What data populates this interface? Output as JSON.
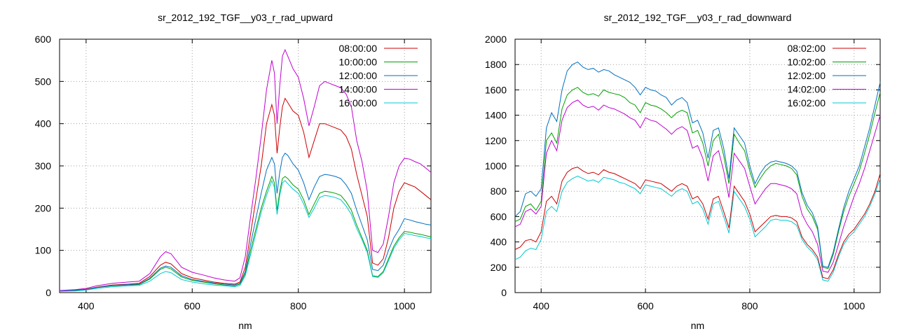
{
  "chart_data": [
    {
      "type": "line",
      "title": "sr_2012_192_TGF__y03_r_rad_upward",
      "xlabel": "nm",
      "ylabel": "",
      "xlim": [
        350,
        1050
      ],
      "ylim": [
        0,
        600
      ],
      "xticks": [
        400,
        600,
        800,
        1000
      ],
      "yticks": [
        0,
        100,
        200,
        300,
        400,
        500,
        600
      ],
      "grid": true,
      "legend_position": "top-right",
      "x": [
        350,
        380,
        400,
        420,
        450,
        480,
        500,
        520,
        540,
        550,
        560,
        580,
        600,
        620,
        640,
        660,
        680,
        690,
        700,
        710,
        720,
        730,
        740,
        750,
        755,
        760,
        765,
        770,
        775,
        780,
        790,
        800,
        810,
        820,
        830,
        840,
        850,
        860,
        870,
        880,
        890,
        900,
        910,
        920,
        930,
        940,
        950,
        960,
        970,
        980,
        990,
        1000,
        1010,
        1020,
        1030,
        1040,
        1050
      ],
      "series": [
        {
          "name": "08:00:00",
          "color": "#cc0000",
          "values": [
            4,
            6,
            8,
            13,
            18,
            20,
            22,
            38,
            65,
            72,
            68,
            45,
            35,
            30,
            25,
            22,
            20,
            25,
            60,
            140,
            220,
            300,
            400,
            445,
            420,
            330,
            390,
            440,
            460,
            450,
            430,
            420,
            380,
            320,
            360,
            400,
            400,
            395,
            390,
            385,
            370,
            340,
            280,
            230,
            180,
            70,
            65,
            80,
            130,
            200,
            240,
            260,
            255,
            250,
            240,
            230,
            220
          ]
        },
        {
          "name": "10:00:00",
          "color": "#00a000",
          "values": [
            4,
            5,
            7,
            12,
            16,
            18,
            19,
            32,
            55,
            60,
            56,
            37,
            29,
            25,
            21,
            18,
            16,
            20,
            45,
            100,
            150,
            200,
            240,
            275,
            260,
            195,
            240,
            270,
            275,
            270,
            255,
            245,
            220,
            185,
            210,
            235,
            240,
            238,
            235,
            230,
            215,
            195,
            160,
            130,
            100,
            40,
            38,
            50,
            80,
            110,
            130,
            145,
            143,
            140,
            138,
            135,
            132
          ]
        },
        {
          "name": "12:00:00",
          "color": "#0070c0",
          "values": [
            4,
            5,
            7,
            12,
            17,
            19,
            20,
            34,
            58,
            63,
            60,
            40,
            31,
            27,
            23,
            20,
            18,
            22,
            50,
            115,
            175,
            235,
            290,
            320,
            305,
            235,
            285,
            320,
            330,
            325,
            305,
            290,
            260,
            220,
            250,
            275,
            280,
            278,
            275,
            270,
            255,
            235,
            195,
            160,
            125,
            55,
            52,
            65,
            100,
            130,
            150,
            175,
            172,
            168,
            165,
            162,
            160
          ]
        },
        {
          "name": "14:00:00",
          "color": "#c000d0",
          "values": [
            5,
            7,
            10,
            16,
            22,
            25,
            27,
            45,
            85,
            97,
            92,
            60,
            48,
            42,
            35,
            30,
            27,
            35,
            85,
            180,
            270,
            370,
            480,
            550,
            520,
            400,
            490,
            560,
            575,
            560,
            530,
            510,
            460,
            395,
            440,
            490,
            500,
            495,
            490,
            485,
            470,
            440,
            360,
            310,
            240,
            100,
            95,
            115,
            180,
            260,
            300,
            318,
            316,
            310,
            305,
            295,
            285
          ]
        },
        {
          "name": "16:00:00",
          "color": "#00c8d0",
          "values": [
            3,
            4,
            6,
            10,
            14,
            16,
            17,
            27,
            45,
            50,
            47,
            31,
            25,
            21,
            18,
            16,
            14,
            17,
            40,
            90,
            140,
            190,
            230,
            265,
            250,
            185,
            230,
            260,
            265,
            258,
            245,
            235,
            210,
            178,
            200,
            225,
            230,
            228,
            225,
            220,
            205,
            185,
            152,
            125,
            95,
            38,
            36,
            47,
            75,
            105,
            125,
            140,
            138,
            135,
            133,
            130,
            128
          ]
        }
      ]
    },
    {
      "type": "line",
      "title": "sr_2012_192_TGF__y03_r_rad_downward",
      "xlabel": "nm",
      "ylabel": "",
      "xlim": [
        350,
        1050
      ],
      "ylim": [
        0,
        2000
      ],
      "xticks": [
        400,
        600,
        800,
        1000
      ],
      "yticks": [
        0,
        200,
        400,
        600,
        800,
        1000,
        1200,
        1400,
        1600,
        1800,
        2000
      ],
      "grid": true,
      "legend_position": "top-right",
      "x": [
        350,
        360,
        370,
        380,
        390,
        400,
        410,
        420,
        430,
        440,
        450,
        460,
        470,
        480,
        490,
        500,
        510,
        520,
        530,
        540,
        550,
        560,
        570,
        580,
        590,
        600,
        610,
        620,
        630,
        640,
        650,
        660,
        670,
        680,
        690,
        700,
        710,
        720,
        730,
        740,
        750,
        760,
        770,
        780,
        790,
        800,
        810,
        820,
        830,
        840,
        850,
        860,
        870,
        880,
        890,
        900,
        910,
        920,
        930,
        940,
        950,
        960,
        970,
        980,
        990,
        1000,
        1010,
        1020,
        1030,
        1040,
        1050
      ],
      "series": [
        {
          "name": "08:02:00",
          "color": "#cc0000",
          "values": [
            340,
            360,
            410,
            420,
            400,
            480,
            720,
            760,
            700,
            880,
            950,
            980,
            990,
            960,
            940,
            950,
            930,
            970,
            950,
            940,
            920,
            900,
            880,
            860,
            820,
            890,
            880,
            870,
            860,
            830,
            800,
            840,
            860,
            840,
            740,
            760,
            700,
            580,
            740,
            760,
            640,
            510,
            840,
            780,
            720,
            620,
            480,
            520,
            560,
            600,
            610,
            600,
            600,
            590,
            560,
            440,
            380,
            340,
            280,
            120,
            110,
            180,
            300,
            400,
            460,
            500,
            560,
            620,
            700,
            800,
            940
          ]
        },
        {
          "name": "10:02:00",
          "color": "#00a000",
          "values": [
            560,
            580,
            680,
            700,
            650,
            720,
            1200,
            1260,
            1180,
            1450,
            1560,
            1600,
            1620,
            1580,
            1560,
            1570,
            1550,
            1600,
            1580,
            1570,
            1560,
            1540,
            1500,
            1480,
            1420,
            1500,
            1480,
            1470,
            1450,
            1420,
            1380,
            1420,
            1440,
            1420,
            1260,
            1280,
            1180,
            1000,
            1200,
            1250,
            1080,
            860,
            1250,
            1180,
            1120,
            960,
            830,
            900,
            960,
            1000,
            1020,
            1010,
            1000,
            980,
            930,
            760,
            660,
            600,
            500,
            200,
            190,
            300,
            480,
            640,
            760,
            860,
            960,
            1100,
            1250,
            1420,
            1580
          ]
        },
        {
          "name": "12:02:00",
          "color": "#0070c0",
          "values": [
            600,
            640,
            780,
            800,
            760,
            820,
            1300,
            1420,
            1350,
            1600,
            1750,
            1800,
            1820,
            1780,
            1760,
            1770,
            1740,
            1760,
            1750,
            1720,
            1700,
            1680,
            1660,
            1620,
            1560,
            1620,
            1600,
            1590,
            1560,
            1540,
            1480,
            1520,
            1540,
            1500,
            1340,
            1360,
            1260,
            1060,
            1280,
            1300,
            1140,
            900,
            1300,
            1240,
            1180,
            1000,
            860,
            940,
            1000,
            1030,
            1040,
            1030,
            1020,
            1000,
            960,
            790,
            690,
            630,
            520,
            210,
            200,
            320,
            500,
            670,
            800,
            900,
            1000,
            1150,
            1300,
            1480,
            1660
          ]
        },
        {
          "name": "14:02:00",
          "color": "#c000d0",
          "values": [
            520,
            540,
            640,
            660,
            620,
            680,
            1100,
            1200,
            1120,
            1360,
            1460,
            1500,
            1520,
            1480,
            1460,
            1470,
            1440,
            1480,
            1460,
            1450,
            1430,
            1410,
            1380,
            1360,
            1300,
            1380,
            1360,
            1350,
            1320,
            1290,
            1250,
            1290,
            1310,
            1280,
            1140,
            1160,
            1060,
            880,
            1080,
            1120,
            960,
            750,
            1100,
            1040,
            980,
            840,
            700,
            760,
            820,
            860,
            860,
            850,
            840,
            820,
            780,
            620,
            540,
            480,
            380,
            170,
            160,
            240,
            380,
            520,
            640,
            760,
            860,
            980,
            1120,
            1260,
            1400
          ]
        },
        {
          "name": "16:02:00",
          "color": "#00c8d0",
          "values": [
            260,
            280,
            330,
            350,
            340,
            420,
            640,
            680,
            640,
            800,
            870,
            900,
            920,
            900,
            880,
            890,
            870,
            910,
            900,
            890,
            870,
            860,
            840,
            820,
            780,
            850,
            840,
            830,
            820,
            790,
            760,
            800,
            820,
            800,
            700,
            720,
            660,
            540,
            700,
            720,
            600,
            470,
            800,
            740,
            680,
            580,
            440,
            480,
            520,
            570,
            580,
            570,
            570,
            560,
            530,
            420,
            360,
            320,
            260,
            100,
            90,
            160,
            280,
            380,
            440,
            480,
            540,
            600,
            680,
            780,
            900
          ]
        }
      ]
    }
  ]
}
